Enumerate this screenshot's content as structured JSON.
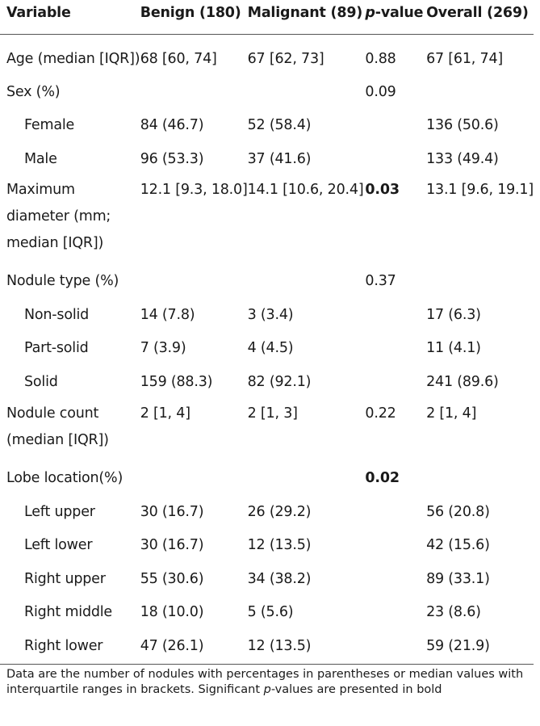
{
  "headers": {
    "variable": "Variable",
    "benign": "Benign (180)",
    "malignant": "Malignant (89)",
    "p_value_italic": "p",
    "p_value_rest": "-value",
    "overall": "Overall (269)"
  },
  "rows": [
    {
      "variable": "Age (median [IQR])",
      "benign": "68 [60, 74]",
      "malignant": "67 [62, 73]",
      "p": "0.88",
      "overall": "67 [61, 74]"
    },
    {
      "variable": "Sex (%)",
      "benign": "",
      "malignant": "",
      "p": "0.09",
      "overall": ""
    },
    {
      "variable": "Female",
      "benign": "84 (46.7)",
      "malignant": "52 (58.4)",
      "p": "",
      "overall": "136 (50.6)"
    },
    {
      "variable": "Male",
      "benign": "96 (53.3)",
      "malignant": "37 (41.6)",
      "p": "",
      "overall": "133 (49.4)"
    },
    {
      "variable": "Maximum diameter (mm; median [IQR])",
      "benign": "12.1 [9.3, 18.0]",
      "malignant": "14.1 [10.6, 20.4]",
      "p": "0.03",
      "overall": "13.1 [9.6, 19.1]"
    },
    {
      "variable": "Nodule type (%)",
      "benign": "",
      "malignant": "",
      "p": "0.37",
      "overall": ""
    },
    {
      "variable": "Non-solid",
      "benign": "14 (7.8)",
      "malignant": "3 (3.4)",
      "p": "",
      "overall": "17 (6.3)"
    },
    {
      "variable": "Part-solid",
      "benign": "7 (3.9)",
      "malignant": "4 (4.5)",
      "p": "",
      "overall": "11 (4.1)"
    },
    {
      "variable": "Solid",
      "benign": "159 (88.3)",
      "malignant": "82 (92.1)",
      "p": "",
      "overall": "241 (89.6)"
    },
    {
      "variable": "Nodule count (median [IQR])",
      "benign": "2 [1, 4]",
      "malignant": "2 [1, 3]",
      "p": "0.22",
      "overall": "2 [1, 4]"
    },
    {
      "variable": "Lobe location(%)",
      "benign": "",
      "malignant": "",
      "p": "0.02",
      "overall": ""
    },
    {
      "variable": "Left upper",
      "benign": "30 (16.7)",
      "malignant": "26 (29.2)",
      "p": "",
      "overall": "56 (20.8)"
    },
    {
      "variable": "Left lower",
      "benign": "30 (16.7)",
      "malignant": "12 (13.5)",
      "p": "",
      "overall": "42 (15.6)"
    },
    {
      "variable": "Right upper",
      "benign": "55 (30.6)",
      "malignant": "34 (38.2)",
      "p": "",
      "overall": "89 (33.1)"
    },
    {
      "variable": "Right middle",
      "benign": "18 (10.0)",
      "malignant": "5 (5.6)",
      "p": "",
      "overall": "23 (8.6)"
    },
    {
      "variable": "Right lower",
      "benign": "47 (26.1)",
      "malignant": "12 (13.5)",
      "p": "",
      "overall": "59 (21.9)"
    }
  ],
  "footnote": {
    "part1": "Data are the number of nodules with percentages in parentheses or median values with interquartile ranges in brackets. Significant ",
    "p_italic": "p",
    "part2": "-values are presented in bold"
  }
}
